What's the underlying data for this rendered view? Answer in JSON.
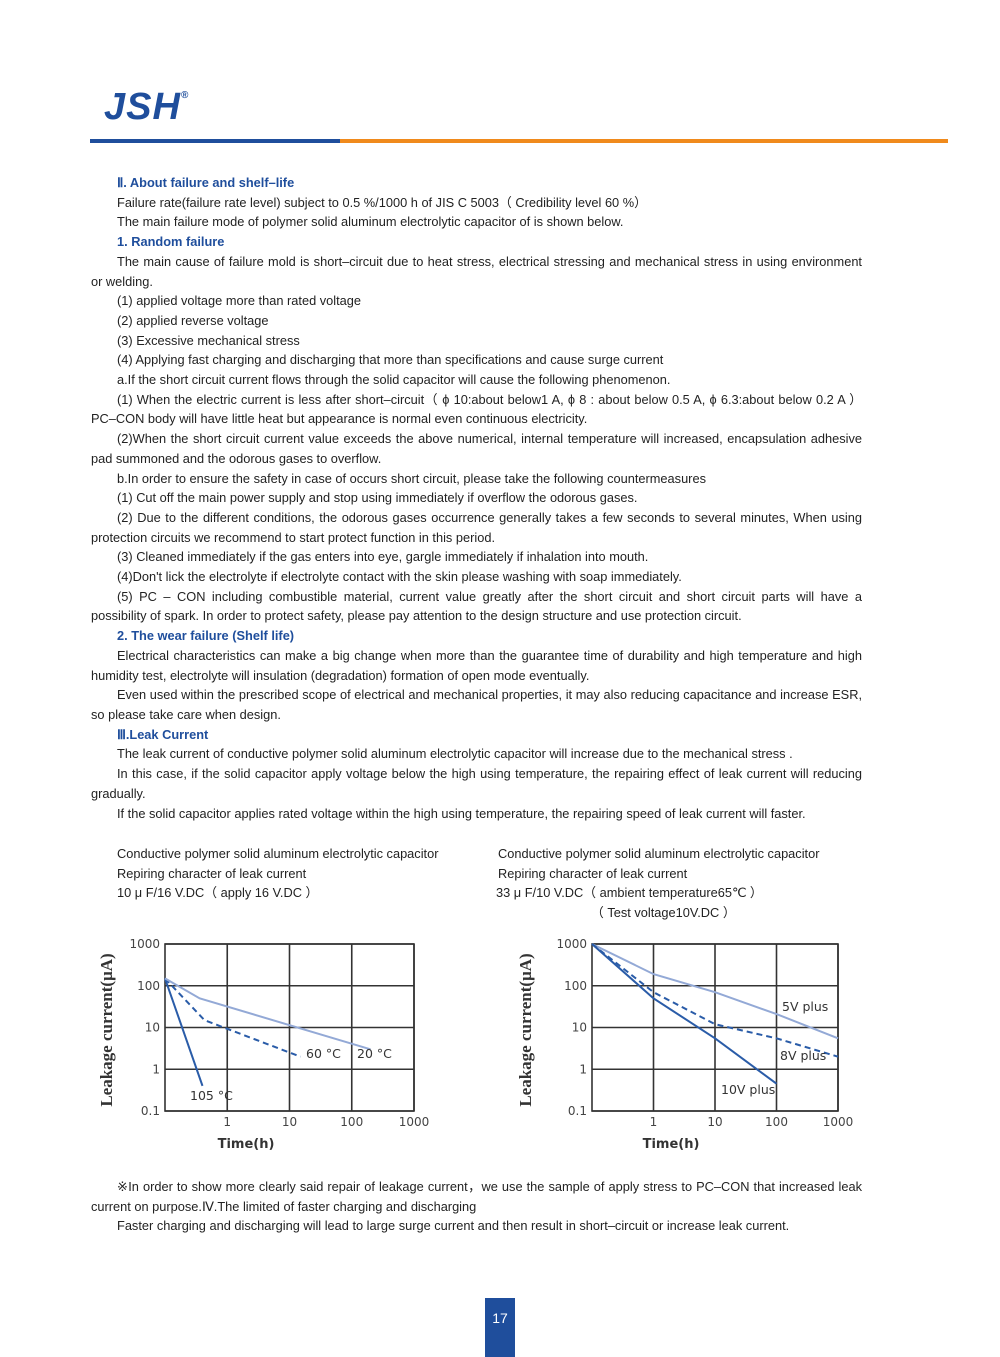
{
  "header": {
    "logo": "JSH",
    "mark": "®"
  },
  "sections": [
    {
      "heading": "Ⅱ. About failure and shelf–life",
      "paragraphs": [
        "Failure rate(failure rate level) subject to 0.5 %/1000 h of JIS C 5003（ Credibility level 60 %）",
        "The main failure mode of polymer solid aluminum electrolytic capacitor of is shown below."
      ]
    },
    {
      "heading": "1. Random failure",
      "paragraphs": [
        "The main cause of failure mold is short–circuit due to heat stress, electrical stressing and mechanical stress in using environment or welding.",
        "(1) applied voltage more than rated voltage",
        "(2) applied reverse voltage",
        "(3) Excessive mechanical stress",
        "(4) Applying fast charging and discharging that more than specifications and cause surge current",
        "a.If the short circuit current flows through the solid capacitor will cause the following phenomenon.",
        "(1) When the electric current is less after short–circuit（ ϕ 10:about below1 A, ϕ 8 : about below 0.5 A, ϕ 6.3:about below 0.2 A ）PC–CON body will have little heat but appearance is normal even continuous electricity.",
        "(2)When the short circuit current value exceeds the above numerical, internal temperature will increased, encapsulation adhesive pad summoned and the odorous gases to overflow.",
        "b.In order to ensure the safety in case of occurs short circuit, please take the following countermeasures",
        "(1) Cut off the main power supply and stop using immediately if overflow the odorous gases.",
        "(2) Due to the different conditions, the odorous gases occurrence generally takes a few seconds to several minutes, When using protection circuits we recommend to start protect function in this period.",
        "(3) Cleaned immediately if the gas enters into eye, gargle immediately if inhalation into mouth.",
        "(4)Don't lick the electrolyte if electrolyte contact with the skin please washing with soap immediately.",
        "(5) PC – CON including combustible material, current value greatly after the short circuit and short circuit parts will have a possibility of spark. In order to protect safety, please pay attention to the design structure and use protection circuit."
      ]
    },
    {
      "heading": "2. The wear failure (Shelf life)",
      "paragraphs": [
        "Electrical characteristics can make a big change when more than the guarantee time of durability and high temperature and high humidity test, electrolyte will insulation (degradation) formation of open mode eventually.",
        "Even used within the prescribed scope of electrical and mechanical properties, it may also reducing capacitance and increase ESR, so please take care when design."
      ]
    },
    {
      "heading": "Ⅲ.Leak Current",
      "paragraphs": [
        "The leak current of conductive polymer solid aluminum electrolytic capacitor will increase due to the mechanical stress .",
        "In this case, if the solid capacitor apply voltage below the high using temperature, the repairing effect of leak current will reducing gradually.",
        "If the solid capacitor applies rated voltage within the high using temperature, the repairing speed of leak current will faster."
      ]
    }
  ],
  "chart_data": [
    {
      "type": "line",
      "caption": [
        "Conductive polymer solid aluminum electrolytic capacitor",
        "Repiring character of leak current",
        "10 μ F/16 V.DC（ apply 16 V.DC ）"
      ],
      "y_label": "Leakage current(μA)",
      "x_label": "Time(h)",
      "log_x": true,
      "log_y": true,
      "grid": true,
      "xlim": [
        0.1,
        1000
      ],
      "xticks": [
        1,
        10,
        100,
        1000
      ],
      "ylim": [
        0.1,
        1000
      ],
      "yticks": [
        1000,
        100,
        10,
        1,
        0.1
      ],
      "series": [
        {
          "name": "105 °C",
          "color": "#2a5ca8",
          "dashed": false,
          "x": [
            0.1,
            0.4
          ],
          "values": [
            150,
            0.4
          ]
        },
        {
          "name": "60 °C",
          "color": "#2a5ca8",
          "dashed": true,
          "x": [
            0.1,
            0.43,
            15
          ],
          "values": [
            150,
            15,
            2
          ]
        },
        {
          "name": "20 °C",
          "color": "#93a9d6",
          "dashed": false,
          "x": [
            0.1,
            0.36,
            200
          ],
          "values": [
            150,
            50,
            3
          ]
        }
      ]
    },
    {
      "type": "line",
      "caption": [
        "Conductive polymer solid aluminum electrolytic capacitor",
        "Repiring character of leak current",
        "33 μ F/10 V.DC（ ambient temperature65℃ ）",
        "（ Test voltage10V.DC ）"
      ],
      "y_label": "Leakage current(μA)",
      "x_label": "Time(h)",
      "log_x": true,
      "log_y": true,
      "grid": true,
      "xlim": [
        0.1,
        1000
      ],
      "xticks": [
        1,
        10,
        100,
        1000
      ],
      "ylim": [
        0.1,
        1000
      ],
      "yticks": [
        1000,
        100,
        10,
        1,
        0.1
      ],
      "series": [
        {
          "name": "5V plus",
          "color": "#93a9d6",
          "dashed": false,
          "x": [
            0.1,
            1,
            10,
            100,
            1000
          ],
          "values": [
            1000,
            190,
            70,
            21,
            5.5
          ]
        },
        {
          "name": "8V plus",
          "color": "#2a5ca8",
          "dashed": true,
          "x": [
            0.1,
            1,
            10,
            100,
            1000
          ],
          "values": [
            1000,
            70,
            12,
            5.5,
            2
          ]
        },
        {
          "name": "10V plus",
          "color": "#2a5ca8",
          "dashed": false,
          "x": [
            0.1,
            1,
            10,
            100
          ],
          "values": [
            1000,
            50,
            5.5,
            0.45
          ]
        }
      ]
    }
  ],
  "footnote": [
    "※In order to show more clearly said repair of leakage current，we use the sample of apply stress to PC–CON that increased leak current on purpose.Ⅳ.The limited of faster charging and discharging",
    "Faster charging and discharging will lead to large surge current and then result in short–circuit or increase leak current."
  ],
  "page_number": "17"
}
